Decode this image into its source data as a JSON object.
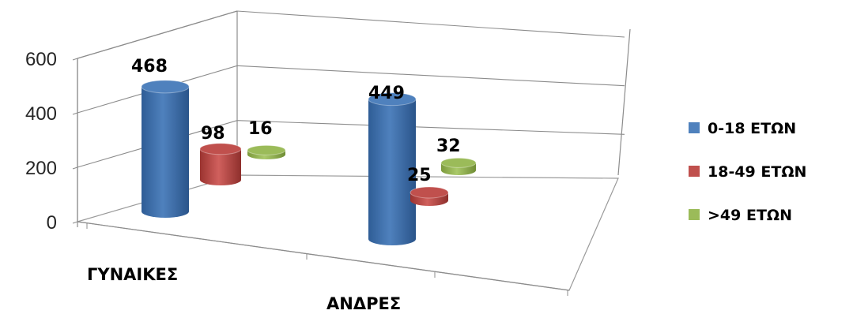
{
  "chart_data": {
    "type": "bar",
    "categories": [
      "ΓΥΝΑΙΚΕΣ",
      "ΑΝΔΡΕΣ"
    ],
    "series": [
      {
        "name": "0-18 ΕΤΩΝ",
        "values": [
          468,
          449
        ],
        "color": "#4f81bd"
      },
      {
        "name": "18-49 ΕΤΩΝ",
        "values": [
          98,
          25
        ],
        "color": "#c0504d"
      },
      {
        "name": ">49 ΕΤΩΝ",
        "values": [
          16,
          32
        ],
        "color": "#9bbb59"
      }
    ],
    "yticks": [
      "0",
      "200",
      "400",
      "600"
    ],
    "ylim": [
      0,
      600
    ],
    "grid": true,
    "legend": "right",
    "style": "3d-cylinder"
  }
}
